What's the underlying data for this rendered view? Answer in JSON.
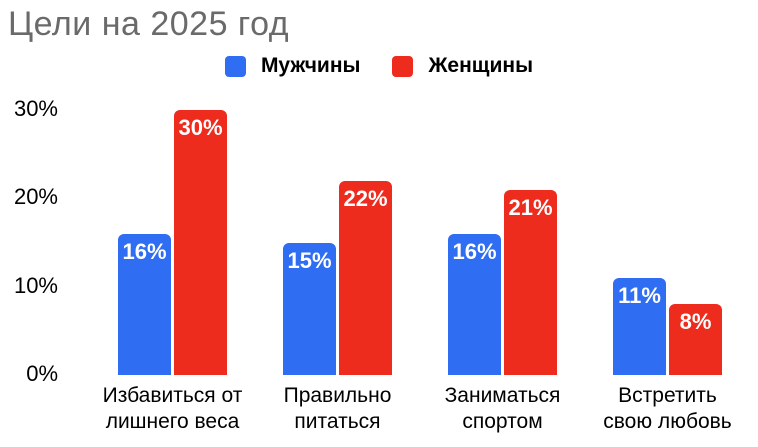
{
  "title": "Цели на 2025 год",
  "colors": {
    "men": "#2F6EF2",
    "women": "#ED2C1E",
    "title_text": "#6A6A6A",
    "axis_text": "#000000",
    "bar_label_text": "#FFFFFF",
    "background": "#FFFFFF"
  },
  "chart_data": {
    "type": "bar",
    "title": "Цели на 2025 год",
    "categories": [
      "Избавиться от лишнего веса",
      "Правильно питаться",
      "Заниматься спортом",
      "Встретить свою любовь"
    ],
    "categories_lines": [
      [
        "Избавиться от",
        "лишнего веса"
      ],
      [
        "Правильно",
        "питаться"
      ],
      [
        "Заниматься",
        "спортом"
      ],
      [
        "Встретить",
        "свою любовь"
      ]
    ],
    "series": [
      {
        "name": "Мужчины",
        "color": "#2F6EF2",
        "values": [
          16,
          15,
          16,
          11
        ],
        "labels": [
          "16%",
          "15%",
          "16%",
          "11%"
        ]
      },
      {
        "name": "Женщины",
        "color": "#ED2C1E",
        "values": [
          30,
          22,
          21,
          8
        ],
        "labels": [
          "30%",
          "22%",
          "21%",
          "8%"
        ]
      }
    ],
    "xlabel": "",
    "ylabel": "",
    "ylim": [
      0,
      30
    ],
    "yticks": [
      {
        "value": 0,
        "label": "0%"
      },
      {
        "value": 10,
        "label": "10%"
      },
      {
        "value": 20,
        "label": "20%"
      },
      {
        "value": 30,
        "label": "30%"
      }
    ],
    "grid": false,
    "legend_position": "top-center",
    "value_labels": "inside-top"
  }
}
